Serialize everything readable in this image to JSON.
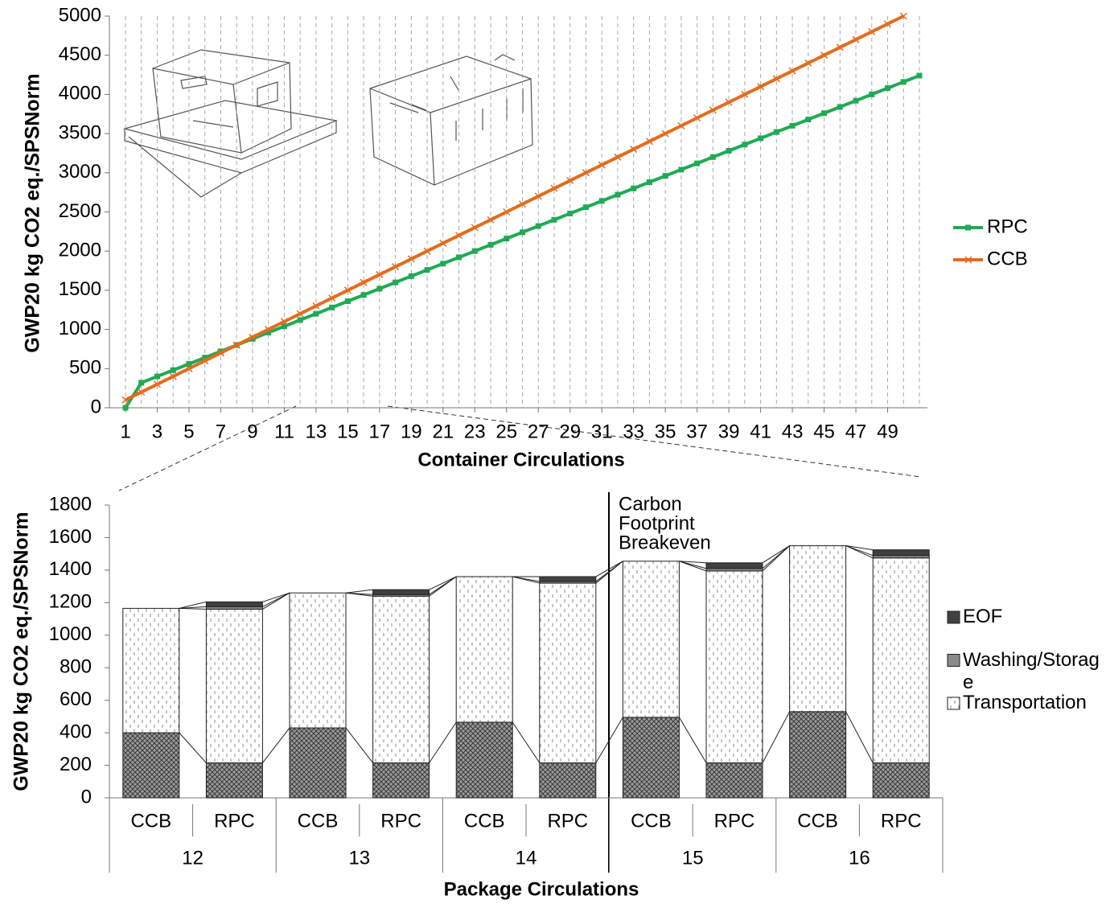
{
  "chart_data": [
    {
      "type": "line",
      "y_label": "GWP20 kg CO2 eq./SPSNorm",
      "x_label": "Container Circulations",
      "x": [
        1,
        2,
        3,
        4,
        5,
        6,
        7,
        8,
        9,
        10,
        11,
        12,
        13,
        14,
        15,
        16,
        17,
        18,
        19,
        20,
        21,
        22,
        23,
        24,
        25,
        26,
        27,
        28,
        29,
        30,
        31,
        32,
        33,
        34,
        35,
        36,
        37,
        38,
        39,
        40,
        41,
        42,
        43,
        44,
        45,
        46,
        47,
        48,
        49,
        50,
        51
      ],
      "xlim": [
        1,
        51
      ],
      "xticks": [
        1,
        3,
        5,
        7,
        9,
        11,
        13,
        15,
        17,
        19,
        21,
        23,
        25,
        27,
        29,
        31,
        33,
        35,
        37,
        39,
        41,
        43,
        45,
        47,
        49
      ],
      "ylim": [
        0,
        5000
      ],
      "yticks": [
        0,
        500,
        1000,
        1500,
        2000,
        2500,
        3000,
        3500,
        4000,
        4500,
        5000
      ],
      "grid": true,
      "series": [
        {
          "name": "RPC",
          "color": "#1faa55",
          "marker": "square",
          "values": [
            0,
            320,
            400,
            480,
            560,
            640,
            720,
            800,
            880,
            960,
            1040,
            1120,
            1200,
            1280,
            1360,
            1440,
            1520,
            1600,
            1680,
            1760,
            1840,
            1920,
            2000,
            2080,
            2160,
            2240,
            2320,
            2400,
            2480,
            2560,
            2640,
            2720,
            2800,
            2880,
            2960,
            3040,
            3120,
            3200,
            3280,
            3360,
            3440,
            3520,
            3600,
            3680,
            3760,
            3840,
            3920,
            4000,
            4080,
            4160,
            4240
          ]
        },
        {
          "name": "CCB",
          "color": "#e36c1e",
          "marker": "x",
          "values": [
            100,
            200,
            300,
            400,
            500,
            600,
            700,
            800,
            900,
            1000,
            1100,
            1200,
            1300,
            1400,
            1500,
            1600,
            1700,
            1800,
            1900,
            2000,
            2100,
            2200,
            2300,
            2400,
            2500,
            2600,
            2700,
            2800,
            2900,
            3000,
            3100,
            3200,
            3300,
            3400,
            3500,
            3600,
            3700,
            3800,
            3900,
            4000,
            4100,
            4200,
            4300,
            4400,
            4500,
            4600,
            4700,
            4800,
            4900,
            5000,
            null
          ]
        }
      ]
    },
    {
      "type": "bar",
      "stacked": true,
      "y_label": "GWP20 kg CO2 eq./SPSNorm",
      "x_label": "Package Circulations",
      "categories": [
        "CCB",
        "RPC",
        "CCB",
        "RPC",
        "CCB",
        "RPC",
        "CCB",
        "RPC",
        "CCB",
        "RPC"
      ],
      "groups": [
        "12",
        "13",
        "14",
        "15",
        "16"
      ],
      "ylim": [
        0,
        1800
      ],
      "yticks": [
        0,
        200,
        400,
        600,
        800,
        1000,
        1200,
        1400,
        1600,
        1800
      ],
      "annotation": [
        "Carbon",
        "Footprint",
        "Breakeven"
      ],
      "series": [
        {
          "color": "#8c8c8c",
          "pattern": "crosshatch",
          "values": [
            400,
            215,
            430,
            215,
            465,
            215,
            495,
            215,
            530,
            215
          ]
        },
        {
          "name": "Transportation",
          "color": "#ffffff",
          "pattern": "dashes",
          "values": [
            765,
            945,
            830,
            1025,
            895,
            1105,
            960,
            1180,
            1020,
            1260
          ]
        },
        {
          "name": "Washing/Storage",
          "color": "#8a8a8a",
          "values": [
            0,
            15,
            0,
            10,
            0,
            10,
            0,
            15,
            0,
            15
          ]
        },
        {
          "name": "EOF",
          "color": "#404040",
          "values": [
            0,
            30,
            0,
            30,
            0,
            30,
            0,
            35,
            0,
            35
          ]
        }
      ]
    }
  ]
}
